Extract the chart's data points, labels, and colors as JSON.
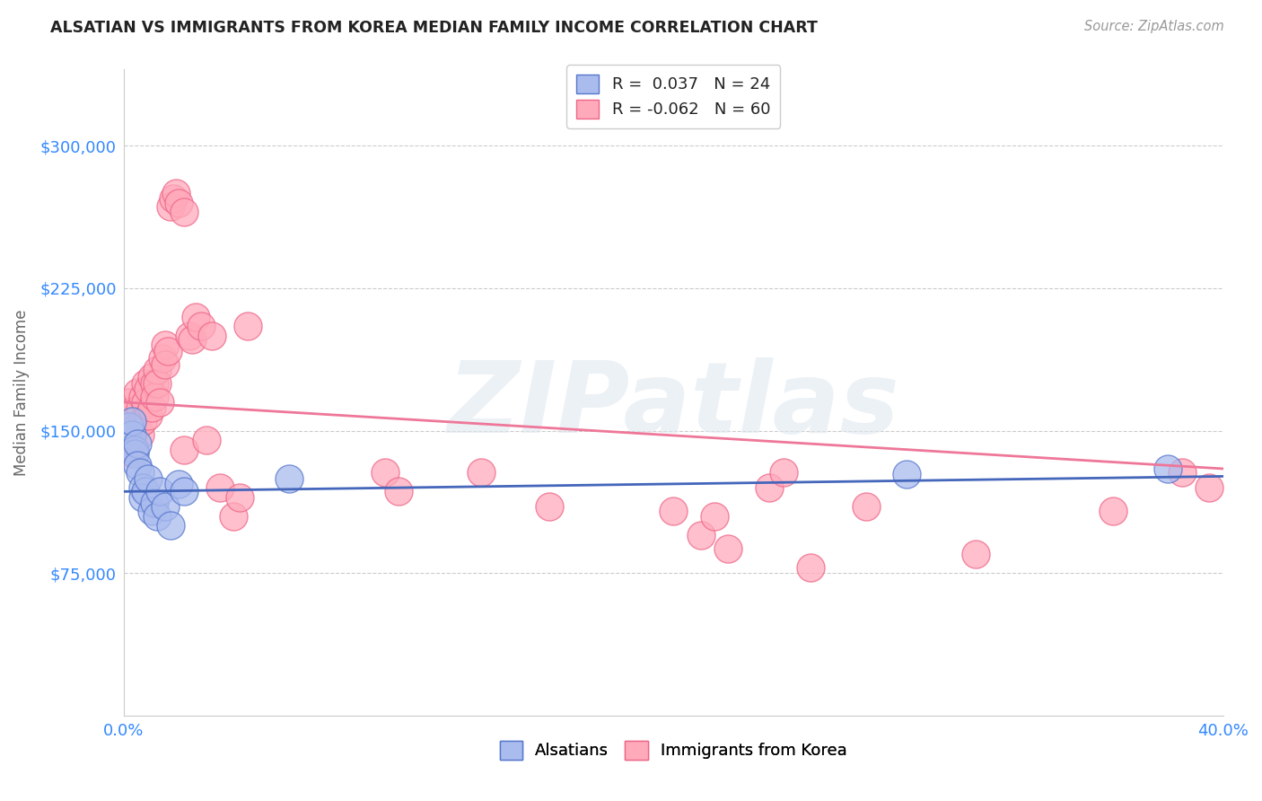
{
  "title": "ALSATIAN VS IMMIGRANTS FROM KOREA MEDIAN FAMILY INCOME CORRELATION CHART",
  "source": "Source: ZipAtlas.com",
  "ylabel": "Median Family Income",
  "xlim": [
    0.0,
    0.4
  ],
  "ylim": [
    0,
    340000
  ],
  "yticks": [
    75000,
    150000,
    225000,
    300000
  ],
  "ytick_labels": [
    "$75,000",
    "$150,000",
    "$225,000",
    "$300,000"
  ],
  "xticks": [
    0.0,
    0.08,
    0.16,
    0.24,
    0.32,
    0.4
  ],
  "xtick_labels": [
    "0.0%",
    "",
    "",
    "",
    "",
    "40.0%"
  ],
  "background_color": "#ffffff",
  "watermark": "ZIPatlas",
  "blue_color": "#aabbee",
  "pink_color": "#ffaabb",
  "blue_edge_color": "#5577cc",
  "pink_edge_color": "#ee6688",
  "blue_line_color": "#4466bb",
  "pink_line_color": "#ee7799",
  "alsatian_x": [
    0.001,
    0.002,
    0.003,
    0.003,
    0.004,
    0.004,
    0.005,
    0.005,
    0.006,
    0.007,
    0.007,
    0.008,
    0.009,
    0.01,
    0.011,
    0.012,
    0.013,
    0.015,
    0.017,
    0.02,
    0.022,
    0.06,
    0.285,
    0.38
  ],
  "alsatian_y": [
    145000,
    152000,
    148000,
    155000,
    140000,
    138000,
    143000,
    132000,
    128000,
    120000,
    115000,
    118000,
    125000,
    108000,
    112000,
    105000,
    118000,
    110000,
    100000,
    122000,
    118000,
    125000,
    127000,
    130000
  ],
  "korea_x": [
    0.001,
    0.002,
    0.002,
    0.003,
    0.003,
    0.004,
    0.004,
    0.005,
    0.005,
    0.006,
    0.006,
    0.007,
    0.007,
    0.008,
    0.008,
    0.009,
    0.009,
    0.01,
    0.01,
    0.011,
    0.011,
    0.012,
    0.012,
    0.013,
    0.014,
    0.015,
    0.015,
    0.016,
    0.017,
    0.018,
    0.019,
    0.02,
    0.022,
    0.022,
    0.024,
    0.025,
    0.026,
    0.028,
    0.03,
    0.032,
    0.035,
    0.04,
    0.042,
    0.045,
    0.095,
    0.1,
    0.13,
    0.155,
    0.2,
    0.21,
    0.215,
    0.22,
    0.235,
    0.24,
    0.25,
    0.27,
    0.31,
    0.36,
    0.385,
    0.395
  ],
  "korea_y": [
    155000,
    165000,
    145000,
    160000,
    138000,
    155000,
    140000,
    170000,
    152000,
    162000,
    148000,
    168000,
    155000,
    175000,
    165000,
    172000,
    158000,
    178000,
    162000,
    175000,
    168000,
    182000,
    175000,
    165000,
    188000,
    195000,
    185000,
    192000,
    268000,
    272000,
    275000,
    270000,
    265000,
    140000,
    200000,
    198000,
    210000,
    205000,
    145000,
    200000,
    120000,
    105000,
    115000,
    205000,
    128000,
    118000,
    128000,
    110000,
    108000,
    95000,
    105000,
    88000,
    120000,
    128000,
    78000,
    110000,
    85000,
    108000,
    128000,
    120000
  ]
}
